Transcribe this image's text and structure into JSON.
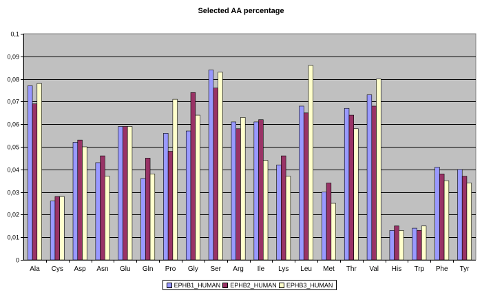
{
  "chart_data": {
    "type": "bar",
    "title": "Selected AA percentage",
    "xlabel": "",
    "ylabel": "",
    "ylim": [
      0,
      0.1
    ],
    "yticks": [
      "0",
      "0,01",
      "0,02",
      "0,03",
      "0,04",
      "0,05",
      "0,06",
      "0,07",
      "0,08",
      "0,09",
      "0,1"
    ],
    "categories": [
      "Ala",
      "Cys",
      "Asp",
      "Asn",
      "Glu",
      "Gln",
      "Pro",
      "Gly",
      "Ser",
      "Arg",
      "Ile",
      "Lys",
      "Leu",
      "Met",
      "Thr",
      "Val",
      "His",
      "Trp",
      "Phe",
      "Tyr"
    ],
    "series": [
      {
        "name": "EPHB1_HUMAN",
        "color": "#9999ff",
        "values": [
          0.077,
          0.026,
          0.052,
          0.043,
          0.059,
          0.036,
          0.056,
          0.057,
          0.084,
          0.061,
          0.061,
          0.042,
          0.068,
          0.03,
          0.067,
          0.073,
          0.013,
          0.014,
          0.041,
          0.04
        ]
      },
      {
        "name": "EPHB2_HUMAN",
        "color": "#993366",
        "values": [
          0.069,
          0.028,
          0.053,
          0.046,
          0.059,
          0.045,
          0.048,
          0.074,
          0.076,
          0.058,
          0.062,
          0.046,
          0.065,
          0.034,
          0.064,
          0.068,
          0.015,
          0.013,
          0.038,
          0.037
        ]
      },
      {
        "name": "EPHB3_HUMAN",
        "color": "#ffffcc",
        "values": [
          0.078,
          0.028,
          0.05,
          0.037,
          0.059,
          0.038,
          0.071,
          0.064,
          0.083,
          0.063,
          0.044,
          0.037,
          0.086,
          0.025,
          0.058,
          0.08,
          0.013,
          0.015,
          0.035,
          0.034
        ]
      }
    ],
    "plot_background": "#c0c0c0",
    "grid": true,
    "legend_position": "bottom"
  }
}
